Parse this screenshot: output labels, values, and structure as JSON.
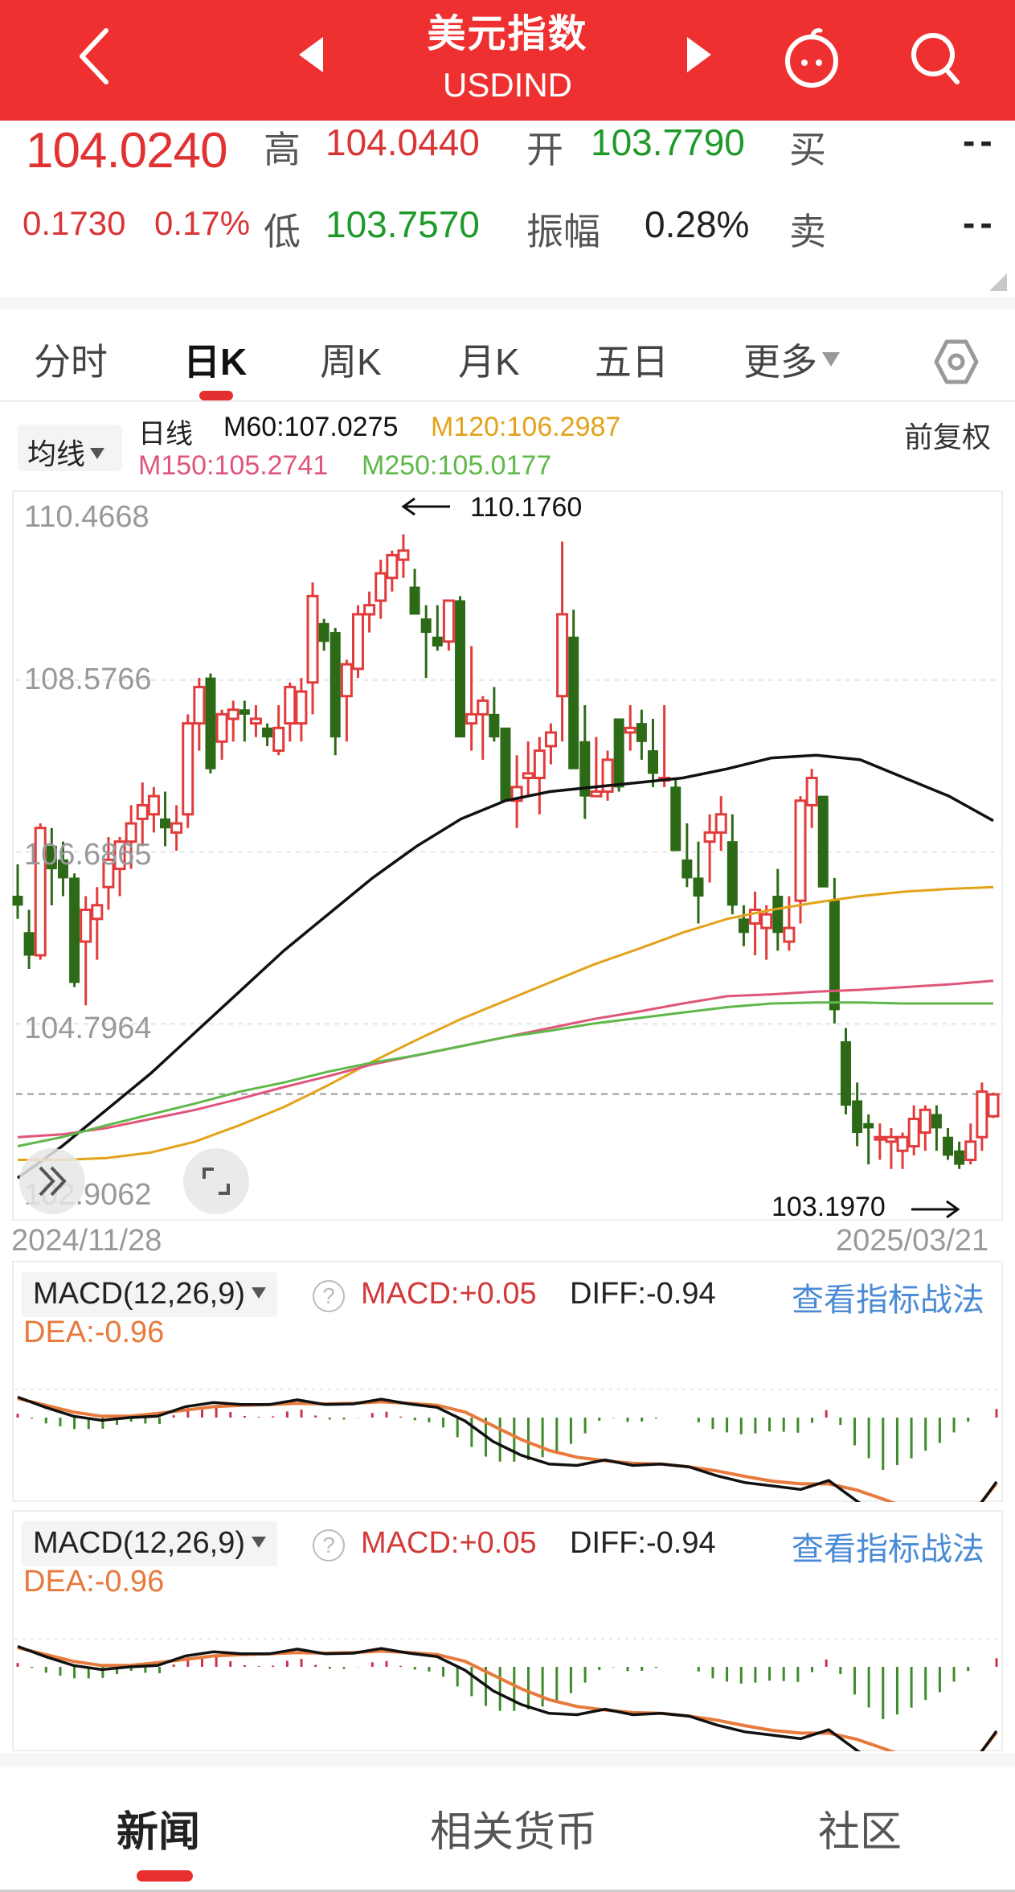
{
  "header": {
    "title": "美元指数",
    "subtitle": "USDIND",
    "back_icon": "chevron-left-icon",
    "prev_icon": "triangle-left-icon",
    "next_icon": "triangle-right-icon",
    "bot_icon": "robot-assistant-icon",
    "search_icon": "search-icon",
    "bg_color": "#ee3030"
  },
  "quote": {
    "price": "104.0240",
    "change": "0.1730",
    "change_pct": "0.17%",
    "high_label": "高",
    "high": "104.0440",
    "open_label": "开",
    "open": "103.7790",
    "buy_label": "买",
    "buy": "--",
    "low_label": "低",
    "low": "103.7570",
    "amplitude_label": "振幅",
    "amplitude": "0.28%",
    "sell_label": "卖",
    "sell": "--"
  },
  "tabs": [
    {
      "label": "分时",
      "active": false
    },
    {
      "label": "日K",
      "active": true
    },
    {
      "label": "周K",
      "active": false
    },
    {
      "label": "月K",
      "active": false
    },
    {
      "label": "五日",
      "active": false
    },
    {
      "label": "更多",
      "active": false,
      "dropdown": true
    }
  ],
  "settings_icon": "hexagon-gear-icon",
  "ma_legend": {
    "selector": "均线",
    "period_label": "日线",
    "m60": "M60:107.0275",
    "m120": "M120:106.2987",
    "m150": "M150:105.2741",
    "m250": "M250:105.0177",
    "adjust": "前复权",
    "colors": {
      "m60": "#111111",
      "m120": "#e3a21a",
      "m150": "#e0557a",
      "m250": "#5fb84a"
    }
  },
  "chart": {
    "y_labels": [
      "110.4668",
      "108.5766",
      "106.6865",
      "104.7964",
      "102.9062"
    ],
    "high_marker": "110.1760",
    "low_marker": "103.1970",
    "start_date": "2024/11/28",
    "end_date": "2025/03/21",
    "expand_icon": "double-chevron-right-icon",
    "fullscreen_icon": "fullscreen-corners-icon",
    "up_color": "#e23b3b",
    "down_color": "#2d6a17"
  },
  "macd_panels": [
    {
      "selector": "MACD(12,26,9)",
      "help_icon": "question-circle-icon",
      "macd": "MACD:+0.05",
      "diff": "DIFF:-0.94",
      "dea": "DEA:-0.96",
      "link": "查看指标战法"
    },
    {
      "selector": "MACD(12,26,9)",
      "help_icon": "question-circle-icon",
      "macd": "MACD:+0.05",
      "diff": "DIFF:-0.94",
      "dea": "DEA:-0.96",
      "link": "查看指标战法"
    }
  ],
  "bottom_nav": [
    {
      "label": "新闻",
      "active": true
    },
    {
      "label": "相关货币",
      "active": false
    },
    {
      "label": "社区",
      "active": false
    }
  ],
  "chart_data": [
    {
      "type": "candlestick",
      "title": "美元指数 USDIND 日K",
      "xlabel": "",
      "ylabel": "",
      "x_range": [
        "2024/11/28",
        "2025/03/21"
      ],
      "ylim": [
        102.9062,
        110.4668
      ],
      "y_ticks": [
        110.4668,
        108.5766,
        106.6865,
        104.7964,
        102.9062
      ],
      "grid": true,
      "annotations": [
        {
          "text": "110.1760",
          "type": "period-high"
        },
        {
          "text": "103.1970",
          "type": "period-low"
        }
      ],
      "last_close_line": 104.024,
      "ohlc": [
        [
          106.2,
          106.55,
          105.95,
          106.1
        ],
        [
          105.8,
          106.05,
          105.4,
          105.55
        ],
        [
          105.55,
          107.0,
          105.5,
          106.95
        ],
        [
          106.75,
          106.95,
          106.1,
          106.5
        ],
        [
          106.6,
          106.8,
          106.2,
          106.4
        ],
        [
          106.4,
          106.45,
          105.2,
          105.25
        ],
        [
          105.7,
          106.2,
          105.0,
          106.05
        ],
        [
          105.95,
          106.3,
          105.5,
          106.1
        ],
        [
          106.3,
          106.85,
          106.05,
          106.6
        ],
        [
          106.5,
          106.85,
          106.2,
          106.8
        ],
        [
          106.8,
          107.2,
          106.5,
          107.0
        ],
        [
          107.05,
          107.45,
          106.75,
          107.2
        ],
        [
          107.1,
          107.4,
          106.9,
          107.3
        ],
        [
          107.05,
          107.35,
          106.75,
          106.95
        ],
        [
          106.9,
          107.2,
          106.7,
          107.0
        ],
        [
          107.1,
          108.2,
          106.95,
          108.1
        ],
        [
          108.1,
          108.6,
          107.8,
          108.5
        ],
        [
          108.6,
          108.65,
          107.55,
          107.6
        ],
        [
          107.9,
          108.25,
          107.7,
          108.2
        ],
        [
          108.15,
          108.35,
          107.9,
          108.25
        ],
        [
          108.25,
          108.35,
          107.9,
          108.2
        ],
        [
          108.1,
          108.3,
          107.95,
          108.15
        ],
        [
          108.05,
          108.1,
          107.85,
          107.95
        ],
        [
          107.8,
          108.3,
          107.75,
          108.05
        ],
        [
          108.1,
          108.55,
          107.9,
          108.5
        ],
        [
          108.1,
          108.6,
          107.9,
          108.45
        ],
        [
          108.55,
          109.65,
          108.2,
          109.5
        ],
        [
          109.2,
          109.25,
          108.9,
          109.0
        ],
        [
          109.1,
          109.15,
          107.75,
          107.95
        ],
        [
          108.4,
          108.8,
          107.9,
          108.75
        ],
        [
          108.7,
          109.4,
          108.6,
          109.3
        ],
        [
          109.3,
          109.55,
          109.1,
          109.4
        ],
        [
          109.45,
          109.9,
          109.25,
          109.75
        ],
        [
          109.7,
          110.0,
          109.55,
          109.95
        ],
        [
          109.9,
          110.18,
          109.7,
          110.0
        ],
        [
          109.6,
          109.8,
          109.3,
          109.3
        ],
        [
          109.25,
          109.4,
          108.6,
          109.1
        ],
        [
          109.05,
          109.4,
          108.9,
          108.95
        ],
        [
          109.0,
          109.45,
          108.9,
          109.45
        ],
        [
          109.45,
          109.5,
          107.95,
          107.95
        ],
        [
          108.1,
          108.95,
          107.8,
          108.2
        ],
        [
          108.2,
          108.4,
          107.7,
          108.35
        ],
        [
          108.2,
          108.5,
          107.9,
          107.95
        ],
        [
          108.05,
          108.05,
          107.25,
          107.25
        ],
        [
          107.25,
          107.75,
          106.95,
          107.4
        ],
        [
          107.5,
          107.9,
          107.3,
          107.55
        ],
        [
          107.5,
          107.95,
          107.1,
          107.8
        ],
        [
          107.85,
          108.1,
          107.65,
          108.0
        ],
        [
          108.4,
          110.1,
          107.9,
          109.3
        ],
        [
          109.05,
          109.35,
          107.6,
          107.6
        ],
        [
          107.9,
          108.3,
          107.05,
          107.3
        ],
        [
          107.3,
          107.95,
          107.3,
          107.35
        ],
        [
          107.35,
          107.8,
          107.25,
          107.7
        ],
        [
          108.15,
          108.15,
          107.35,
          107.4
        ],
        [
          108.0,
          108.3,
          107.8,
          108.05
        ],
        [
          108.1,
          108.25,
          107.7,
          107.9
        ],
        [
          107.8,
          108.15,
          107.4,
          107.55
        ],
        [
          107.5,
          108.3,
          107.4,
          107.5
        ],
        [
          107.4,
          107.5,
          106.7,
          106.7
        ],
        [
          106.6,
          107.0,
          106.3,
          106.4
        ],
        [
          106.4,
          106.8,
          105.9,
          106.2
        ],
        [
          106.8,
          107.1,
          106.35,
          106.9
        ],
        [
          106.9,
          107.3,
          106.7,
          107.1
        ],
        [
          106.8,
          107.1,
          106.0,
          106.1
        ],
        [
          105.95,
          106.1,
          105.65,
          105.8
        ],
        [
          105.9,
          106.25,
          105.55,
          106.05
        ],
        [
          105.85,
          106.1,
          105.5,
          106.0
        ],
        [
          106.2,
          106.5,
          105.6,
          105.8
        ],
        [
          105.7,
          106.2,
          105.6,
          105.85
        ],
        [
          106.15,
          107.3,
          105.9,
          107.25
        ],
        [
          107.2,
          107.6,
          106.95,
          107.5
        ],
        [
          107.3,
          107.3,
          106.3,
          106.3
        ],
        [
          106.15,
          106.4,
          104.8,
          104.95
        ],
        [
          104.6,
          104.75,
          103.8,
          103.9
        ],
        [
          103.95,
          104.15,
          103.45,
          103.6
        ],
        [
          103.7,
          103.8,
          103.25,
          103.65
        ],
        [
          103.55,
          103.7,
          103.3,
          103.55
        ],
        [
          103.5,
          103.65,
          103.2,
          103.55
        ],
        [
          103.4,
          103.6,
          103.2,
          103.55
        ],
        [
          103.45,
          103.9,
          103.35,
          103.75
        ],
        [
          103.6,
          103.9,
          103.4,
          103.85
        ],
        [
          103.8,
          103.9,
          103.4,
          103.65
        ],
        [
          103.55,
          103.65,
          103.3,
          103.35
        ],
        [
          103.4,
          103.5,
          103.2,
          103.25
        ],
        [
          103.3,
          103.7,
          103.25,
          103.5
        ],
        [
          103.55,
          104.15,
          103.4,
          104.05
        ],
        [
          103.78,
          104.04,
          103.76,
          104.02
        ]
      ],
      "series": [
        {
          "name": "M60",
          "color": "#111111",
          "last": 107.0275,
          "values": [
            103.1,
            103.45,
            103.85,
            104.25,
            104.7,
            105.15,
            105.6,
            106.0,
            106.4,
            106.75,
            107.05,
            107.25,
            107.35,
            107.4,
            107.45,
            107.5,
            107.6,
            107.72,
            107.75,
            107.7,
            107.5,
            107.3,
            107.03
          ]
        },
        {
          "name": "M120",
          "color": "#e3a21a",
          "last": 106.2987,
          "values": [
            103.3,
            103.3,
            103.32,
            103.38,
            103.5,
            103.68,
            103.88,
            104.12,
            104.38,
            104.62,
            104.85,
            105.05,
            105.25,
            105.45,
            105.62,
            105.8,
            105.95,
            106.05,
            106.13,
            106.2,
            106.25,
            106.28,
            106.3
          ]
        },
        {
          "name": "M150",
          "color": "#e0557a",
          "last": 105.2741,
          "values": [
            103.55,
            103.58,
            103.65,
            103.75,
            103.85,
            103.97,
            104.1,
            104.22,
            104.35,
            104.45,
            104.55,
            104.65,
            104.75,
            104.85,
            104.93,
            105.02,
            105.1,
            105.12,
            105.15,
            105.17,
            105.2,
            105.23,
            105.27
          ]
        },
        {
          "name": "M250",
          "color": "#5fb84a",
          "last": 105.0177,
          "values": [
            103.45,
            103.55,
            103.68,
            103.8,
            103.92,
            104.05,
            104.15,
            104.27,
            104.37,
            104.45,
            104.55,
            104.65,
            104.72,
            104.8,
            104.86,
            104.92,
            104.98,
            105.02,
            105.03,
            105.03,
            105.02,
            105.02,
            105.02
          ]
        }
      ]
    },
    {
      "type": "line+bar",
      "title": "MACD(12,26,9)",
      "series": [
        {
          "name": "DIFF",
          "color": "#111111",
          "last": -0.94,
          "values": [
            0.3,
            0.15,
            0.02,
            -0.04,
            0.0,
            0.02,
            0.16,
            0.22,
            0.19,
            0.19,
            0.26,
            0.19,
            0.2,
            0.27,
            0.2,
            0.15,
            -0.05,
            -0.35,
            -0.55,
            -0.68,
            -0.7,
            -0.62,
            -0.7,
            -0.68,
            -0.72,
            -0.85,
            -0.95,
            -1.0,
            -1.05,
            -0.92,
            -1.22,
            -1.48,
            -1.56,
            -1.58,
            -1.5,
            -0.94
          ]
        },
        {
          "name": "DEA",
          "color": "#e77a3c",
          "last": -0.96,
          "values": [
            0.28,
            0.18,
            0.08,
            0.02,
            0.02,
            0.06,
            0.11,
            0.16,
            0.18,
            0.19,
            0.21,
            0.2,
            0.21,
            0.23,
            0.21,
            0.18,
            0.08,
            -0.12,
            -0.32,
            -0.48,
            -0.58,
            -0.63,
            -0.67,
            -0.68,
            -0.72,
            -0.78,
            -0.86,
            -0.93,
            -0.97,
            -0.97,
            -1.06,
            -1.2,
            -1.35,
            -1.45,
            -1.48,
            -0.96
          ]
        },
        {
          "name": "MACD",
          "color_pos": "#c9354a",
          "color_neg": "#3f8a2a",
          "last": 0.05
        }
      ]
    }
  ]
}
